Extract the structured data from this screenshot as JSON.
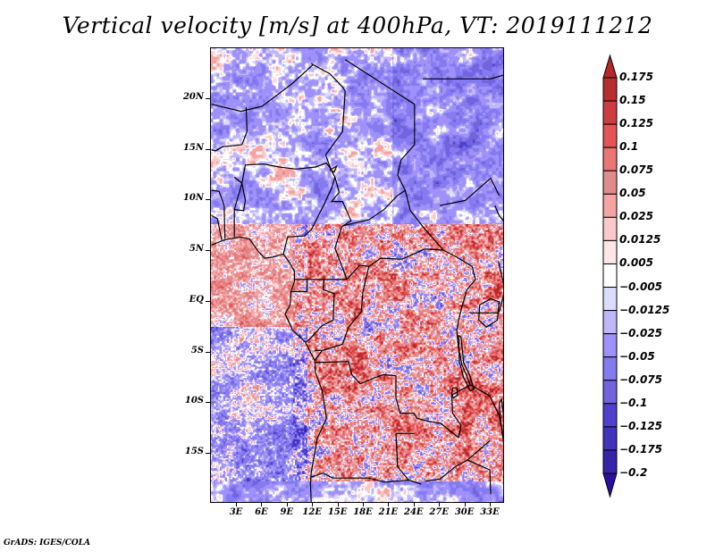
{
  "title": "Vertical velocity [m/s] at 400hPa, VT: 2019111212",
  "footer": "GrADS: IGES/COLA",
  "map": {
    "region": "Central Africa",
    "variable": "vertical velocity",
    "units": "m/s",
    "level": "400hPa",
    "valid_time": "2019111212",
    "lon_range": [
      0,
      35
    ],
    "lat_range": [
      -20,
      24
    ],
    "lat_labels": [
      "20N",
      "15N",
      "10N",
      "5N",
      "EQ",
      "5S",
      "10S",
      "15S"
    ],
    "lat_values": [
      20,
      15,
      10,
      5,
      0,
      -5,
      -10,
      -15
    ],
    "lon_labels": [
      "3E",
      "6E",
      "9E",
      "12E",
      "15E",
      "18E",
      "21E",
      "24E",
      "27E",
      "30E",
      "33E"
    ],
    "lon_values": [
      3,
      6,
      9,
      12,
      15,
      18,
      21,
      24,
      27,
      30,
      33
    ]
  },
  "colorbar": {
    "labels": [
      "0.175",
      "0.15",
      "0.125",
      "0.1",
      "0.075",
      "0.05",
      "0.025",
      "0.0125",
      "0.005",
      "−0.005",
      "−0.0125",
      "−0.025",
      "−0.05",
      "−0.075",
      "−0.1",
      "−0.125",
      "−0.175",
      "−0.2"
    ],
    "colors": [
      "#b4272a",
      "#b82d2e",
      "#cd3d3f",
      "#e55454",
      "#e97575",
      "#e08c8f",
      "#f5a3a3",
      "#fbc9c9",
      "#fde6e6",
      "#ffffff",
      "#dcdcfd",
      "#c0b6fb",
      "#a090f9",
      "#857bf0",
      "#7363dc",
      "#4f40cf",
      "#4232bd",
      "#3625a8",
      "#2d0fa0"
    ]
  }
}
